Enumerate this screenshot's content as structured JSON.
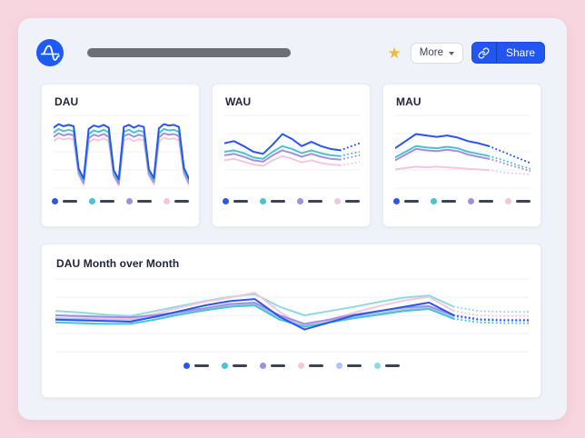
{
  "header": {
    "logo": "amplitude-logo",
    "title_placeholder_bar": true,
    "favorite_icon": "★",
    "more_button": {
      "label": "More"
    },
    "share_button": {
      "label": "Share"
    }
  },
  "colors": {
    "page_bg": "#F8D6DF",
    "app_bg": "#EFF2F8",
    "card_bg": "#FFFFFF",
    "accent_blue": "#2156F3",
    "star": "#F0B646",
    "title_bar_placeholder": "#6C7076",
    "gridline": "#ECEFF4",
    "legend_dash": "#3C4356",
    "series": {
      "blue": "#2B55F0",
      "teal": "#49C4CE",
      "purple": "#A38FE0",
      "pink": "#F3C8DB",
      "periwinkle": "#ADC4F6",
      "light_teal": "#90D9E0"
    }
  },
  "chart_data": [
    {
      "type": "line",
      "title": "DAU",
      "grid": true,
      "ylim": [
        0,
        100
      ],
      "x_labels_visible": false,
      "dotted_forecast_from": null,
      "series": [
        {
          "name": "blue",
          "color": "#2B55F0",
          "values": [
            84,
            89,
            86,
            88,
            86,
            26,
            12,
            82,
            87,
            85,
            88,
            84,
            24,
            11,
            85,
            88,
            84,
            87,
            85,
            25,
            13,
            83,
            89,
            87,
            88,
            85,
            27,
            12
          ]
        },
        {
          "name": "teal",
          "color": "#49C4CE",
          "values": [
            77,
            82,
            79,
            81,
            79,
            23,
            9,
            75,
            80,
            78,
            81,
            77,
            21,
            8,
            78,
            81,
            77,
            80,
            78,
            22,
            10,
            76,
            82,
            80,
            81,
            78,
            24,
            9
          ]
        },
        {
          "name": "purple",
          "color": "#A38FE0",
          "values": [
            71,
            76,
            73,
            75,
            73,
            20,
            6,
            69,
            74,
            72,
            75,
            71,
            18,
            5,
            72,
            75,
            71,
            74,
            72,
            19,
            7,
            70,
            76,
            74,
            75,
            72,
            21,
            6
          ]
        },
        {
          "name": "pink",
          "color": "#F3C8DB",
          "values": [
            65,
            70,
            67,
            69,
            67,
            17,
            3,
            63,
            68,
            66,
            69,
            65,
            15,
            2,
            66,
            69,
            65,
            68,
            66,
            16,
            4,
            64,
            70,
            68,
            69,
            66,
            18,
            3
          ]
        }
      ],
      "legend": {
        "labels_visible": false,
        "colors": [
          "#2B55F0",
          "#49C4CE",
          "#A38FE0",
          "#F3C8DB"
        ]
      }
    },
    {
      "type": "line",
      "title": "WAU",
      "grid": true,
      "ylim": [
        0,
        100
      ],
      "x_labels_visible": false,
      "dotted_forecast_from": 12,
      "series": [
        {
          "name": "blue",
          "color": "#2B55F0",
          "values": [
            62,
            65,
            58,
            50,
            47,
            60,
            75,
            68,
            58,
            64,
            58,
            54,
            52,
            57,
            62
          ]
        },
        {
          "name": "teal",
          "color": "#49C4CE",
          "values": [
            50,
            52,
            48,
            42,
            40,
            50,
            58,
            54,
            48,
            52,
            48,
            45,
            44,
            47,
            50
          ]
        },
        {
          "name": "purple",
          "color": "#A38FE0",
          "values": [
            45,
            47,
            43,
            38,
            36,
            45,
            52,
            48,
            43,
            47,
            43,
            40,
            39,
            42,
            45
          ]
        },
        {
          "name": "pink",
          "color": "#F3C8DB",
          "values": [
            38,
            40,
            36,
            32,
            30,
            38,
            44,
            40,
            35,
            38,
            34,
            32,
            31,
            33,
            36
          ]
        }
      ],
      "legend": {
        "labels_visible": false,
        "colors": [
          "#2B55F0",
          "#49C4CE",
          "#A38FE0",
          "#F3C8DB"
        ]
      }
    },
    {
      "type": "line",
      "title": "MAU",
      "grid": true,
      "ylim": [
        0,
        100
      ],
      "x_labels_visible": false,
      "dotted_forecast_from": 9,
      "series": [
        {
          "name": "blue",
          "color": "#2B55F0",
          "values": [
            55,
            65,
            75,
            73,
            71,
            73,
            70,
            65,
            62,
            58,
            52,
            46,
            40,
            34
          ]
        },
        {
          "name": "teal",
          "color": "#49C4CE",
          "values": [
            42,
            50,
            58,
            56,
            55,
            57,
            55,
            50,
            47,
            44,
            40,
            35,
            30,
            26
          ]
        },
        {
          "name": "purple",
          "color": "#A38FE0",
          "values": [
            38,
            46,
            54,
            52,
            51,
            53,
            51,
            46,
            43,
            40,
            36,
            31,
            27,
            23
          ]
        },
        {
          "name": "pink",
          "color": "#F3C8DB",
          "values": [
            25,
            27,
            29,
            28,
            29,
            28,
            27,
            26,
            25,
            24,
            22,
            20,
            19,
            18
          ]
        }
      ],
      "legend": {
        "labels_visible": false,
        "colors": [
          "#2B55F0",
          "#49C4CE",
          "#A38FE0",
          "#F3C8DB"
        ]
      }
    },
    {
      "type": "line",
      "title": "DAU Month over Month",
      "grid": true,
      "ylim": [
        0,
        100
      ],
      "x_labels_visible": false,
      "dotted_forecast_from": 16,
      "series": [
        {
          "name": "blue",
          "color": "#2B55F0",
          "values": [
            44,
            43,
            42,
            41,
            48,
            56,
            64,
            70,
            73,
            48,
            30,
            40,
            50,
            56,
            62,
            68,
            50,
            44,
            43,
            43
          ]
        },
        {
          "name": "teal",
          "color": "#49C4CE",
          "values": [
            40,
            39,
            38,
            38,
            44,
            51,
            57,
            62,
            64,
            44,
            34,
            40,
            46,
            51,
            56,
            59,
            45,
            40,
            39,
            39
          ]
        },
        {
          "name": "purple",
          "color": "#A38FE0",
          "values": [
            50,
            49,
            48,
            47,
            50,
            55,
            60,
            66,
            68,
            50,
            38,
            44,
            51,
            56,
            61,
            63,
            50,
            45,
            44,
            44
          ]
        },
        {
          "name": "pink",
          "color": "#F3C8DB",
          "values": [
            50,
            48,
            46,
            45,
            52,
            61,
            69,
            75,
            82,
            55,
            33,
            44,
            54,
            63,
            71,
            76,
            56,
            50,
            49,
            49
          ]
        },
        {
          "name": "periwinkle",
          "color": "#ADC4F6",
          "values": [
            46,
            45,
            44,
            44,
            47,
            53,
            59,
            64,
            66,
            47,
            36,
            42,
            48,
            53,
            58,
            61,
            48,
            43,
            42,
            42
          ]
        },
        {
          "name": "light_teal",
          "color": "#90D9E0",
          "values": [
            56,
            54,
            51,
            49,
            56,
            63,
            70,
            76,
            80,
            62,
            50,
            56,
            62,
            69,
            75,
            78,
            62,
            56,
            55,
            55
          ]
        }
      ],
      "legend": {
        "labels_visible": false,
        "colors": [
          "#2B55F0",
          "#49C4CE",
          "#A38FE0",
          "#F3C8DB",
          "#ADC4F6",
          "#90D9E0"
        ]
      }
    }
  ]
}
